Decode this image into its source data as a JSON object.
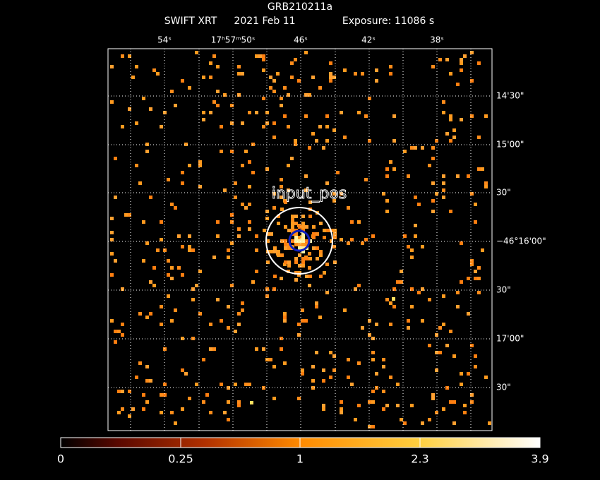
{
  "title": "GRB210211a",
  "subtitle": [
    "SWIFT XRT",
    "2021 Feb 11",
    "Exposure: 11086 s"
  ],
  "ra_labels": [
    "54ˢ",
    "17ʰ57ᵐ50ˢ",
    "46ˢ",
    "42ˢ",
    "38ˢ"
  ],
  "dec_labels": [
    "14'30\"",
    "15'00\"",
    "30\"",
    "−46°16'00\"",
    "30\"",
    "17'00\"",
    "30\""
  ],
  "source_label": "input_pos",
  "colorbar": {
    "labels": [
      "0",
      "0.25",
      "1",
      "2.3",
      "3.9"
    ]
  }
}
